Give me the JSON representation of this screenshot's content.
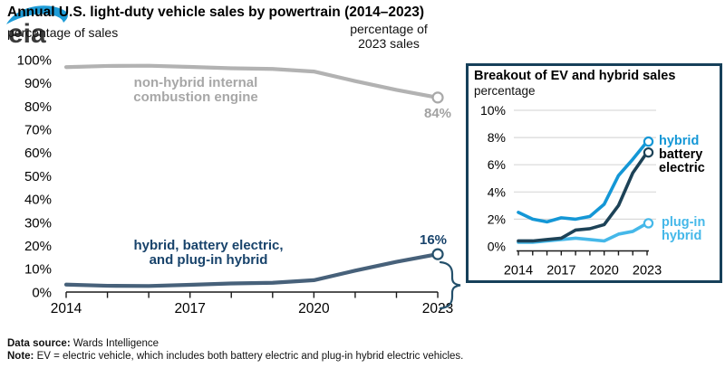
{
  "header": {
    "title": "Annual U.S. light-duty vehicle sales by powertrain (2014–2023)",
    "left_axis_caption": "percentage of sales",
    "right_axis_caption_line1": "percentage of",
    "right_axis_caption_line2": "2023 sales",
    "logo_text": "eia"
  },
  "main_chart_labels": {
    "ice_line1": "non-hybrid internal",
    "ice_line2": "combustion engine",
    "ice_value": "84%",
    "ev_line1": "hybrid, battery electric,",
    "ev_line2": "and plug-in hybrid",
    "ev_value": "16%"
  },
  "inset_labels": {
    "title": "Breakout of EV and hybrid sales",
    "unit": "percentage",
    "hybrid": "hybrid",
    "battery_line1": "battery",
    "battery_line2": "electric",
    "plugin_line1": "plug-in",
    "plugin_line2": "hybrid"
  },
  "footer": {
    "source_label": "Data source:",
    "source_value": "Wards Intelligence",
    "note_label": "Note:",
    "note_value": "EV = electric vehicle, which includes both battery electric and plug-in hybrid electric vehicles."
  },
  "colors": {
    "ice_line": "#b2b2b2",
    "ice_marker": "#a9a9a9",
    "ev_line": "#47617a",
    "ev_marker": "#24506b",
    "navy_text": "#18436b",
    "inset_border": "#16405a",
    "hybrid": "#1497d6",
    "battery_electric": "#1d4257",
    "plugin_hybrid": "#45b8e9",
    "gridline": "#d9d9d9",
    "axis": "#1a1a1a"
  },
  "chart_data": [
    {
      "type": "line",
      "title": "Annual U.S. light-duty vehicle sales by powertrain (2014–2023)",
      "ylabel": "percentage of sales",
      "ylim": [
        0,
        100
      ],
      "grid": false,
      "x": [
        2014,
        2015,
        2016,
        2017,
        2018,
        2019,
        2020,
        2021,
        2022,
        2023
      ],
      "yticks": [
        "100%",
        "90%",
        "80%",
        "70%",
        "60%",
        "50%",
        "40%",
        "30%",
        "20%",
        "10%",
        "0%"
      ],
      "xticks": [
        2014,
        2017,
        2020,
        2023
      ],
      "series": [
        {
          "name": "non-hybrid internal combustion engine",
          "color": "#b2b2b2",
          "marker_color": "#a9a9a9",
          "values": [
            96.8,
            97.3,
            97.4,
            96.9,
            96.3,
            96.0,
            94.9,
            90.8,
            87.0,
            83.7
          ],
          "end_label": "84%"
        },
        {
          "name": "hybrid, battery electric, and plug-in hybrid",
          "color": "#47617a",
          "marker_color": "#24506b",
          "values": [
            3.2,
            2.7,
            2.6,
            3.1,
            3.7,
            4.0,
            5.1,
            9.2,
            13.0,
            16.3
          ],
          "end_label": "16%"
        }
      ]
    },
    {
      "type": "line",
      "title": "Breakout of EV and hybrid sales",
      "ylabel": "percentage",
      "ylim": [
        0,
        10
      ],
      "grid": true,
      "legend_position": "right",
      "x": [
        2014,
        2015,
        2016,
        2017,
        2018,
        2019,
        2020,
        2021,
        2022,
        2023
      ],
      "yticks": [
        "10%",
        "8%",
        "6%",
        "4%",
        "2%",
        "0%"
      ],
      "xticks": [
        2014,
        2017,
        2020,
        2023
      ],
      "series": [
        {
          "name": "plug-in hybrid",
          "color": "#45b8e9",
          "marker_color": "#45b8e9",
          "values": [
            0.3,
            0.3,
            0.4,
            0.5,
            0.6,
            0.5,
            0.4,
            0.9,
            1.1,
            1.7
          ]
        },
        {
          "name": "battery electric",
          "color": "#1d4257",
          "marker_color": "#1d4257",
          "values": [
            0.4,
            0.4,
            0.5,
            0.6,
            1.2,
            1.3,
            1.6,
            3.0,
            5.4,
            6.9
          ]
        },
        {
          "name": "hybrid",
          "color": "#1497d6",
          "marker_color": "#1497d6",
          "values": [
            2.5,
            2.0,
            1.8,
            2.1,
            2.0,
            2.2,
            3.1,
            5.2,
            6.4,
            7.7
          ]
        }
      ]
    }
  ]
}
